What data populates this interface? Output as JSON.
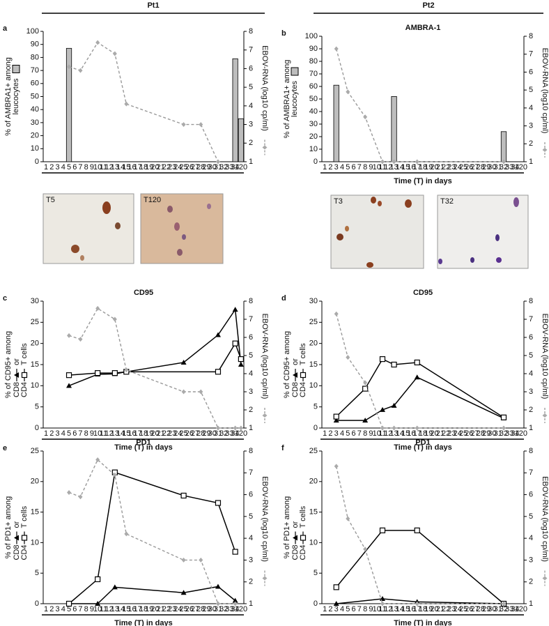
{
  "headers": [
    "Pt1",
    "Pt2"
  ],
  "images": [
    "T5",
    "T120",
    "T3",
    "T32"
  ],
  "chart_data": [
    {
      "type": "bar",
      "panel": "a",
      "ylabel": [
        "% of AMBRA1+ among",
        "leucocytes"
      ],
      "y2label": "EBOV-RNA (log10 cp/ml)",
      "categories": [
        1,
        2,
        3,
        4,
        5,
        6,
        7,
        8,
        9,
        10,
        11,
        12,
        13,
        14,
        15,
        16,
        17,
        18,
        19,
        20,
        21,
        22,
        23,
        24,
        25,
        26,
        27,
        28,
        29,
        30,
        31,
        32,
        33,
        34,
        120
      ],
      "ylim": [
        0,
        100
      ],
      "yticks": [
        0,
        10,
        20,
        30,
        40,
        50,
        60,
        70,
        80,
        90,
        100
      ],
      "y2lim": [
        1,
        8
      ],
      "y2ticks": [
        1,
        2,
        3,
        4,
        5,
        6,
        7,
        8
      ],
      "series": [
        {
          "color": "#bdbdbd",
          "x": [
            5,
            34,
            120
          ],
          "values": [
            87,
            79,
            33
          ]
        },
        {
          "color": "#999999",
          "axis": "y2",
          "x": [
            5,
            7,
            10,
            13,
            15,
            25,
            28,
            31
          ],
          "values": [
            6.1,
            5.9,
            7.4,
            6.8,
            4.1,
            3.0,
            3.0,
            1.0
          ]
        }
      ]
    },
    {
      "type": "bar",
      "panel": "b",
      "title": "AMBRA-1",
      "ylabel": [
        "% of AMBRA1+ among",
        "leucocytes"
      ],
      "y2label": "EBOV-RNA (log10 cp/ml)",
      "xlabel": "Time (T) in days",
      "categories": [
        1,
        2,
        3,
        4,
        5,
        6,
        7,
        8,
        9,
        10,
        11,
        12,
        13,
        14,
        15,
        16,
        17,
        18,
        19,
        20,
        21,
        22,
        23,
        24,
        25,
        26,
        27,
        28,
        29,
        30,
        31,
        32,
        33,
        34,
        120
      ],
      "ylim": [
        0,
        100
      ],
      "yticks": [
        0,
        10,
        20,
        30,
        40,
        50,
        60,
        70,
        80,
        90,
        100
      ],
      "y2lim": [
        1,
        8
      ],
      "y2ticks": [
        1,
        2,
        3,
        4,
        5,
        6,
        7,
        8
      ],
      "series": [
        {
          "color": "#bdbdbd",
          "x": [
            3,
            13,
            32
          ],
          "values": [
            61,
            52,
            24
          ]
        },
        {
          "color": "#999999",
          "axis": "y2",
          "x": [
            3,
            5,
            8,
            11,
            13,
            17,
            32
          ],
          "values": [
            7.3,
            4.9,
            3.5,
            1.0,
            1.0,
            1.0,
            1.0
          ]
        }
      ]
    },
    {
      "type": "line",
      "panel": "c",
      "title": "CD95",
      "ylabel": [
        "% of CD95+ among"
      ],
      "ylabel_join": "or",
      "ylabel_tail": "T cells",
      "y2label": "EBOV-RNA (log10 cp/ml)",
      "xlabel": "Time (T) in days",
      "categories": [
        1,
        2,
        3,
        4,
        5,
        6,
        7,
        8,
        9,
        10,
        11,
        12,
        13,
        14,
        15,
        16,
        17,
        18,
        19,
        20,
        21,
        22,
        23,
        24,
        25,
        26,
        27,
        28,
        29,
        30,
        31,
        32,
        33,
        34,
        120
      ],
      "ylim": [
        0,
        30
      ],
      "yticks": [
        0,
        5,
        10,
        15,
        20,
        25,
        30
      ],
      "y2lim": [
        1,
        8
      ],
      "y2ticks": [
        1,
        2,
        3,
        4,
        5,
        6,
        7,
        8
      ],
      "series": [
        {
          "name": "CD8",
          "marker": "triangle",
          "color": "#000000",
          "x": [
            5,
            10,
            13,
            15,
            25,
            31,
            34,
            120
          ],
          "values": [
            10,
            12.7,
            12.8,
            13.3,
            15.5,
            22,
            28,
            15
          ]
        },
        {
          "name": "CD4",
          "marker": "square",
          "color": "#000000",
          "x": [
            5,
            10,
            13,
            15,
            31,
            34,
            120
          ],
          "values": [
            12.5,
            13,
            13,
            13.3,
            13.3,
            20,
            16.3
          ]
        },
        {
          "color": "#999999",
          "axis": "y2",
          "x": [
            5,
            7,
            10,
            13,
            15,
            25,
            28,
            31,
            34,
            120
          ],
          "values": [
            6.1,
            5.9,
            7.6,
            7.0,
            4.2,
            3.0,
            3.0,
            1.0,
            1.0,
            1.0
          ]
        }
      ]
    },
    {
      "type": "line",
      "panel": "d",
      "title": "CD95",
      "ylabel": [
        "% of CD95+ among"
      ],
      "ylabel_join": "or",
      "ylabel_tail": "T cells",
      "y2label": "EBOV-RNA (log10 cp/ml)",
      "xlabel": "Time (T) in days",
      "categories": [
        1,
        2,
        3,
        4,
        5,
        6,
        7,
        8,
        9,
        10,
        11,
        12,
        13,
        14,
        15,
        16,
        17,
        18,
        19,
        20,
        21,
        22,
        23,
        24,
        25,
        26,
        27,
        28,
        29,
        30,
        31,
        32,
        33,
        34,
        120
      ],
      "ylim": [
        0,
        30
      ],
      "yticks": [
        0,
        5,
        10,
        15,
        20,
        25,
        30
      ],
      "y2lim": [
        1,
        8
      ],
      "y2ticks": [
        1,
        2,
        3,
        4,
        5,
        6,
        7,
        8
      ],
      "series": [
        {
          "name": "CD8",
          "marker": "triangle",
          "color": "#000000",
          "x": [
            3,
            8,
            11,
            13,
            17,
            32
          ],
          "values": [
            1.8,
            1.8,
            4.3,
            5.3,
            12,
            2.3
          ]
        },
        {
          "name": "CD4",
          "marker": "square",
          "color": "#000000",
          "x": [
            3,
            8,
            11,
            13,
            17,
            32
          ],
          "values": [
            2.7,
            9.3,
            16.3,
            15,
            15.5,
            2.5
          ]
        },
        {
          "color": "#999999",
          "axis": "y2",
          "x": [
            3,
            5,
            8,
            11,
            13,
            17,
            32
          ],
          "values": [
            7.3,
            4.9,
            3.5,
            1.0,
            1.0,
            1.0,
            1.0
          ]
        }
      ]
    },
    {
      "type": "line",
      "panel": "e",
      "title": "PD1",
      "ylabel": [
        "% of PD1+ among"
      ],
      "ylabel_join": "or",
      "ylabel_tail": "T cells",
      "y2label": "EBOV-RNA (log10 cp/ml)",
      "xlabel": "Time (T) in days",
      "categories": [
        1,
        2,
        3,
        4,
        5,
        6,
        7,
        8,
        9,
        10,
        11,
        12,
        13,
        14,
        15,
        16,
        17,
        18,
        19,
        20,
        21,
        22,
        23,
        24,
        25,
        26,
        27,
        28,
        29,
        30,
        31,
        32,
        33,
        34,
        120
      ],
      "ylim": [
        0,
        25
      ],
      "yticks": [
        0,
        5,
        10,
        15,
        20,
        25
      ],
      "y2lim": [
        1,
        8
      ],
      "y2ticks": [
        1,
        2,
        3,
        4,
        5,
        6,
        7,
        8
      ],
      "series": [
        {
          "name": "CD8",
          "marker": "triangle",
          "color": "#000000",
          "x": [
            5,
            10,
            13,
            25,
            31,
            34
          ],
          "values": [
            0,
            0,
            2.7,
            1.8,
            2.8,
            0.5
          ]
        },
        {
          "name": "CD4",
          "marker": "square",
          "color": "#000000",
          "x": [
            5,
            10,
            13,
            25,
            31,
            34
          ],
          "values": [
            0,
            4,
            21.5,
            17.7,
            16.5,
            8.5
          ]
        },
        {
          "color": "#999999",
          "axis": "y2",
          "x": [
            5,
            7,
            10,
            13,
            15,
            25,
            28,
            31,
            34
          ],
          "values": [
            6.1,
            5.9,
            7.6,
            6.9,
            4.2,
            3.0,
            3.0,
            1.0,
            1.0
          ]
        }
      ]
    },
    {
      "type": "line",
      "panel": "f",
      "title": "PD1",
      "ylabel": [
        "% of PD1+ among"
      ],
      "ylabel_join": "or",
      "ylabel_tail": "T cells",
      "y2label": "EBOV-RNA (log10 cp/ml)",
      "xlabel": "Time (T) in days",
      "categories": [
        1,
        2,
        3,
        4,
        5,
        6,
        7,
        8,
        9,
        10,
        11,
        12,
        13,
        14,
        15,
        16,
        17,
        18,
        19,
        20,
        21,
        22,
        23,
        24,
        25,
        26,
        27,
        28,
        29,
        30,
        31,
        32,
        33,
        34,
        120
      ],
      "ylim": [
        0,
        25
      ],
      "yticks": [
        0,
        5,
        10,
        15,
        20,
        25
      ],
      "y2lim": [
        1,
        8
      ],
      "y2ticks": [
        1,
        2,
        3,
        4,
        5,
        6,
        7,
        8
      ],
      "series": [
        {
          "name": "CD8",
          "marker": "triangle",
          "color": "#000000",
          "x": [
            3,
            11,
            17,
            32
          ],
          "values": [
            0,
            0.8,
            0.3,
            0
          ]
        },
        {
          "name": "CD4",
          "marker": "square",
          "color": "#000000",
          "x": [
            3,
            11,
            17,
            32
          ],
          "values": [
            2.7,
            12,
            12,
            0
          ]
        },
        {
          "color": "#999999",
          "axis": "y2",
          "x": [
            3,
            5,
            8,
            11,
            17,
            32
          ],
          "values": [
            7.3,
            4.9,
            3.5,
            1.0,
            1.0,
            1.0
          ]
        }
      ]
    }
  ]
}
